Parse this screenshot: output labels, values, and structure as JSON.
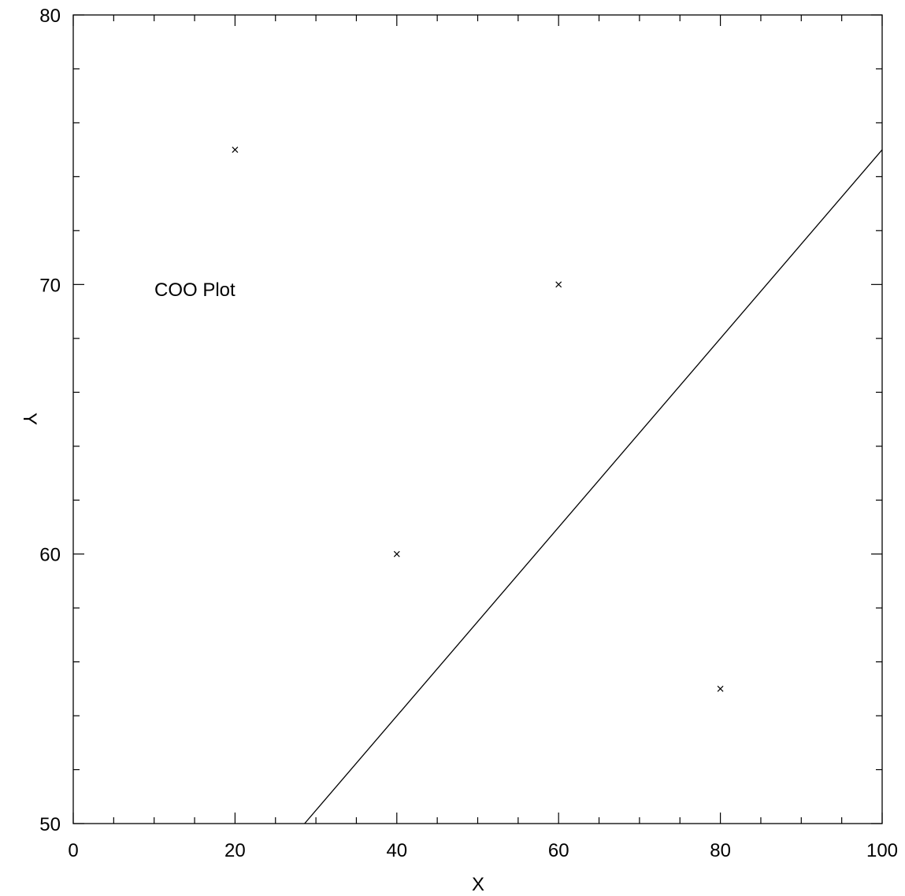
{
  "chart_data": {
    "type": "scatter",
    "title": "",
    "annotation": "COO Plot",
    "xlabel": "X",
    "ylabel": "Y",
    "xlim": [
      0,
      100
    ],
    "ylim": [
      50,
      80
    ],
    "x_major_ticks": [
      0,
      20,
      40,
      60,
      80,
      100
    ],
    "x_minor_step": 5,
    "y_major_ticks": [
      50,
      60,
      70,
      80
    ],
    "y_minor_step": 2,
    "x_tick_labels": [
      "0",
      "20",
      "40",
      "60",
      "80",
      "100"
    ],
    "y_tick_labels": [
      "50",
      "60",
      "70",
      "80"
    ],
    "grid": false,
    "marker": "x",
    "points": [
      {
        "x": 20,
        "y": 75
      },
      {
        "x": 40,
        "y": 60
      },
      {
        "x": 60,
        "y": 70
      },
      {
        "x": 80,
        "y": 55
      }
    ],
    "fit_line": {
      "x": [
        28.6,
        100
      ],
      "y": [
        50,
        75
      ]
    }
  }
}
